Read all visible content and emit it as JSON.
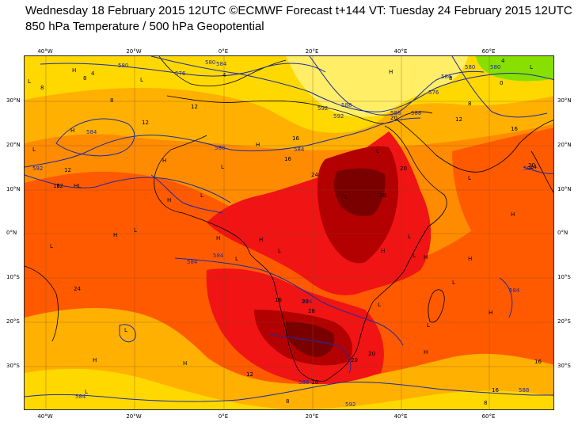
{
  "header": {
    "title": "Wednesday 18 February 2015 12UTC ©ECMWF Forecast t+144 VT: Tuesday 24 February 2015 12UTC",
    "subtitle": "850 hPa Temperature / 500 hPa Geopotential"
  },
  "axes": {
    "lon_labels": [
      "40°W",
      "20°W",
      "0°E",
      "20°E",
      "40°E",
      "60°E"
    ],
    "lat_labels_left": [
      "30°N",
      "20°N",
      "10°N",
      "0°N",
      "10°S",
      "20°S",
      "30°S"
    ],
    "lat_labels_right": [
      "30°N",
      "20°N",
      "10°N",
      "0°N",
      "10°S",
      "20°S",
      "30°S"
    ]
  },
  "colors": {
    "dark_red": "#7a0000",
    "crimson": "#b30000",
    "red": "#f01414",
    "orange_red": "#ff5a00",
    "orange": "#ff8c00",
    "amber": "#ffb000",
    "yellow": "#ffd800",
    "pale_yellow": "#ffee66",
    "green": "#88e000",
    "contour": "#1e2aa0"
  },
  "geopotential_labels": [
    "580",
    "584",
    "576",
    "588",
    "592",
    "580",
    "584",
    "576",
    "584",
    "592",
    "588",
    "584",
    "580",
    "592",
    "588",
    "584",
    "584",
    "588",
    "592",
    "584",
    "584",
    "588",
    "588",
    "584",
    "588",
    "580"
  ],
  "temperature_labels": [
    "8",
    "4",
    "4",
    "8",
    "8",
    "12",
    "12",
    "12",
    "16",
    "16",
    "20",
    "24",
    "28",
    "28",
    "20",
    "16",
    "12",
    "8",
    "8",
    "12",
    "16",
    "20",
    "20",
    "24",
    "16",
    "0",
    "4",
    "8",
    "8",
    "12",
    "16",
    "16",
    "20",
    "24",
    "16",
    "20"
  ],
  "pressure_marks": [
    "H",
    "L",
    "H",
    "L",
    "HL",
    "L",
    "H",
    "L",
    "H",
    "L",
    "H",
    "L",
    "H",
    "L",
    "H",
    "L",
    "L",
    "H",
    "L",
    "H",
    "L",
    "L",
    "H",
    "L",
    "H",
    "H",
    "L",
    "L",
    "H",
    "L",
    "L",
    "H",
    "L",
    "H",
    "L",
    "H",
    "H",
    "L"
  ]
}
